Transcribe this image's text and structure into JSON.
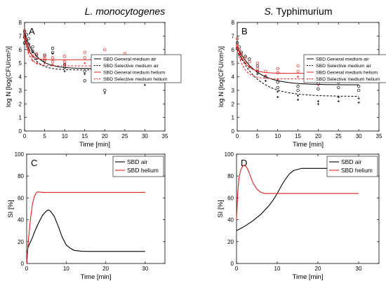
{
  "titles": {
    "left_italic": "L. monocytogenes",
    "right_prefix": "S.",
    "right_suffix": " Typhimurium"
  },
  "chart_data": [
    {
      "panel": "A",
      "type": "scatter",
      "xlabel": "Time [min]",
      "ylabel": "log N [log(CFU/cm²)]",
      "xlim": [
        0,
        35
      ],
      "ylim": [
        0,
        8
      ],
      "xticks": [
        0,
        5,
        10,
        15,
        20,
        25,
        30,
        35
      ],
      "yticks": [
        0,
        1,
        2,
        3,
        4,
        5,
        6,
        7,
        8
      ],
      "legend_position": "right",
      "series": [
        {
          "name": "SBD General medium air",
          "color": "#000000",
          "dash": "solid",
          "fit": {
            "y0": 7.2,
            "yinf": 4.6,
            "k": 0.35
          },
          "points": [
            [
              0,
              7.3
            ],
            [
              0,
              6.9
            ],
            [
              0,
              6.5
            ],
            [
              0.5,
              7.1
            ],
            [
              1,
              6.8
            ],
            [
              1,
              6.4
            ],
            [
              2,
              6.2
            ],
            [
              2,
              5.9
            ],
            [
              3,
              5.6
            ],
            [
              5,
              5.2
            ],
            [
              5,
              5.6
            ],
            [
              7,
              6.1
            ],
            [
              7,
              5.8
            ],
            [
              10,
              4.7
            ],
            [
              10,
              4.9
            ],
            [
              15,
              4.4
            ],
            [
              15,
              3.7
            ],
            [
              20,
              4.6
            ],
            [
              20,
              3.0
            ],
            [
              25,
              4.4
            ],
            [
              25,
              4.8
            ],
            [
              30,
              4.3
            ],
            [
              30,
              4.6
            ]
          ]
        },
        {
          "name": "SBD Selective medium air",
          "color": "#000000",
          "dash": "dashed",
          "fit": {
            "y0": 7.0,
            "yinf": 4.5,
            "k": 0.45
          },
          "points": [
            [
              0,
              7.0
            ],
            [
              0,
              6.4
            ],
            [
              0.5,
              6.6
            ],
            [
              1,
              6.1
            ],
            [
              2,
              5.8
            ],
            [
              3,
              5.3
            ],
            [
              5,
              5.0
            ],
            [
              7,
              5.7
            ],
            [
              10,
              4.4
            ],
            [
              15,
              4.2
            ],
            [
              20,
              2.8
            ],
            [
              25,
              4.1
            ],
            [
              30,
              4.0
            ],
            [
              30,
              3.4
            ]
          ]
        },
        {
          "name": "SBD General medium helium",
          "color": "#e02020",
          "dash": "solid",
          "fit": {
            "y0": 7.0,
            "yinf": 5.25,
            "k": 0.9
          },
          "points": [
            [
              0,
              7.4
            ],
            [
              0,
              7.1
            ],
            [
              0.5,
              6.7
            ],
            [
              1,
              6.3
            ],
            [
              1,
              6.0
            ],
            [
              2,
              5.5
            ],
            [
              3,
              5.7
            ],
            [
              5,
              5.3
            ],
            [
              5,
              5.5
            ],
            [
              7,
              5.4
            ],
            [
              7,
              5.1
            ],
            [
              10,
              5.5
            ],
            [
              10,
              5.1
            ],
            [
              15,
              5.8
            ],
            [
              15,
              5.4
            ],
            [
              20,
              5.5
            ],
            [
              20,
              6.0
            ],
            [
              25,
              5.7
            ],
            [
              25,
              5.3
            ],
            [
              30,
              4.6
            ]
          ]
        },
        {
          "name": "SBD Selective medium helium",
          "color": "#e02020",
          "dash": "dashed",
          "fit": {
            "y0": 6.8,
            "yinf": 4.8,
            "k": 0.8
          },
          "points": [
            [
              0,
              6.9
            ],
            [
              0.5,
              6.4
            ],
            [
              1,
              5.8
            ],
            [
              2,
              5.2
            ],
            [
              3,
              5.0
            ],
            [
              5,
              5.0
            ],
            [
              7,
              4.9
            ],
            [
              10,
              4.9
            ],
            [
              15,
              5.0
            ],
            [
              20,
              5.1
            ],
            [
              25,
              4.9
            ],
            [
              30,
              4.2
            ],
            [
              30,
              3.9
            ]
          ]
        }
      ]
    },
    {
      "panel": "B",
      "type": "scatter",
      "xlabel": "Time [min]",
      "ylabel": "log N [log(CFU/cm²)]",
      "xlim": [
        0,
        35
      ],
      "ylim": [
        0,
        8
      ],
      "xticks": [
        0,
        5,
        10,
        15,
        20,
        25,
        30,
        35
      ],
      "yticks": [
        0,
        1,
        2,
        3,
        4,
        5,
        6,
        7,
        8
      ],
      "legend_position": "right",
      "series": [
        {
          "name": "SBD General medium air",
          "color": "#000000",
          "dash": "solid",
          "fit": {
            "y0": 6.2,
            "yinf": 3.4,
            "k": 0.22
          },
          "points": [
            [
              0,
              6.5
            ],
            [
              0,
              6.1
            ],
            [
              0.5,
              6.2
            ],
            [
              1,
              5.8
            ],
            [
              2,
              5.5
            ],
            [
              3,
              5.3
            ],
            [
              5,
              4.8
            ],
            [
              5,
              4.4
            ],
            [
              7,
              4.0
            ],
            [
              10,
              3.6
            ],
            [
              10,
              3.2
            ],
            [
              15,
              3.3
            ],
            [
              15,
              3.0
            ],
            [
              20,
              3.5
            ],
            [
              20,
              3.1
            ],
            [
              25,
              3.6
            ],
            [
              25,
              3.2
            ],
            [
              30,
              3.3
            ],
            [
              30,
              3.0
            ]
          ]
        },
        {
          "name": "SBD Selective medium air",
          "color": "#000000",
          "dash": "dashed",
          "fit": {
            "y0": 6.0,
            "yinf": 2.55,
            "k": 0.2
          },
          "points": [
            [
              0,
              6.0
            ],
            [
              0.5,
              5.6
            ],
            [
              1,
              5.3
            ],
            [
              2,
              5.0
            ],
            [
              3,
              4.7
            ],
            [
              5,
              4.2
            ],
            [
              7,
              3.7
            ],
            [
              10,
              2.9
            ],
            [
              10,
              2.5
            ],
            [
              15,
              2.6
            ],
            [
              15,
              2.3
            ],
            [
              20,
              2.2
            ],
            [
              20,
              2.0
            ],
            [
              25,
              2.5
            ],
            [
              25,
              2.2
            ],
            [
              30,
              2.4
            ],
            [
              30,
              2.1
            ]
          ]
        },
        {
          "name": "SBD General medium helium",
          "color": "#e02020",
          "dash": "solid",
          "fit": {
            "y0": 6.3,
            "yinf": 4.25,
            "k": 0.5
          },
          "points": [
            [
              0,
              6.8
            ],
            [
              0,
              6.3
            ],
            [
              0.5,
              6.0
            ],
            [
              1,
              5.7
            ],
            [
              2,
              5.4
            ],
            [
              3,
              5.1
            ],
            [
              5,
              5.0
            ],
            [
              5,
              4.6
            ],
            [
              7,
              4.4
            ],
            [
              10,
              4.3
            ],
            [
              10,
              4.6
            ],
            [
              15,
              4.8
            ],
            [
              15,
              4.4
            ],
            [
              20,
              4.7
            ],
            [
              20,
              4.2
            ],
            [
              25,
              4.6
            ],
            [
              25,
              4.3
            ],
            [
              30,
              4.8
            ],
            [
              30,
              4.4
            ]
          ]
        },
        {
          "name": "SBD Selective medium helium",
          "color": "#e02020",
          "dash": "dashed",
          "fit": {
            "y0": 6.0,
            "yinf": 3.85,
            "k": 0.6
          },
          "points": [
            [
              0,
              6.1
            ],
            [
              0.5,
              5.7
            ],
            [
              1,
              5.3
            ],
            [
              2,
              5.0
            ],
            [
              3,
              4.8
            ],
            [
              5,
              4.4
            ],
            [
              7,
              4.1
            ],
            [
              10,
              3.8
            ],
            [
              15,
              4.0
            ],
            [
              20,
              3.4
            ],
            [
              25,
              4.0
            ],
            [
              30,
              3.9
            ]
          ]
        }
      ]
    },
    {
      "panel": "C",
      "type": "line",
      "xlabel": "Time [min]",
      "ylabel": "SI [%]",
      "xlim": [
        0,
        35
      ],
      "ylim": [
        0,
        100
      ],
      "xticks": [
        0,
        10,
        20,
        30
      ],
      "yticks": [
        0,
        20,
        40,
        60,
        80,
        100
      ],
      "legend_position": "top-right",
      "series": [
        {
          "name": "SBD air",
          "color": "#000000",
          "x": [
            0,
            0.3,
            0.6,
            1,
            1.5,
            2,
            3,
            4,
            5,
            5.5,
            6,
            7,
            8,
            9,
            10,
            11,
            12,
            14,
            16,
            18,
            20,
            25,
            30
          ],
          "y": [
            0,
            14,
            17,
            20,
            24,
            29,
            37,
            44,
            48,
            49,
            48,
            43,
            34,
            24,
            17,
            14,
            12,
            11.2,
            11,
            11,
            11,
            11,
            11
          ]
        },
        {
          "name": "SBD helium",
          "color": "#e02020",
          "x": [
            0,
            0.5,
            1,
            1.5,
            2,
            2.5,
            3,
            4,
            5,
            10,
            20,
            30
          ],
          "y": [
            0,
            24,
            42,
            55,
            62,
            65,
            65.5,
            65,
            65,
            65,
            65,
            65
          ]
        }
      ]
    },
    {
      "panel": "D",
      "type": "line",
      "xlabel": "Time [min]",
      "ylabel": "SI [%]",
      "xlim": [
        0,
        35
      ],
      "ylim": [
        0,
        100
      ],
      "xticks": [
        0,
        10,
        20,
        30
      ],
      "yticks": [
        0,
        20,
        40,
        60,
        80,
        100
      ],
      "legend_position": "top-right",
      "series": [
        {
          "name": "SBD air",
          "color": "#000000",
          "x": [
            0,
            1,
            2,
            3,
            4,
            5,
            6,
            7,
            8,
            9,
            10,
            11,
            12,
            13,
            14,
            16,
            18,
            20,
            25,
            30
          ],
          "y": [
            30,
            32,
            34,
            36.5,
            39,
            42,
            45,
            49,
            53,
            58,
            64,
            71,
            77,
            82,
            85,
            87,
            87,
            87,
            87,
            87
          ]
        },
        {
          "name": "SBD helium",
          "color": "#e02020",
          "x": [
            0,
            0.3,
            0.6,
            1,
            1.5,
            2,
            2.5,
            3,
            3.5,
            4,
            5,
            6,
            7,
            8,
            10,
            15,
            20,
            30
          ],
          "y": [
            40,
            65,
            78,
            85,
            89,
            90,
            88,
            84,
            79,
            74,
            68,
            65,
            64,
            64,
            64,
            64,
            64,
            64
          ]
        }
      ]
    }
  ]
}
